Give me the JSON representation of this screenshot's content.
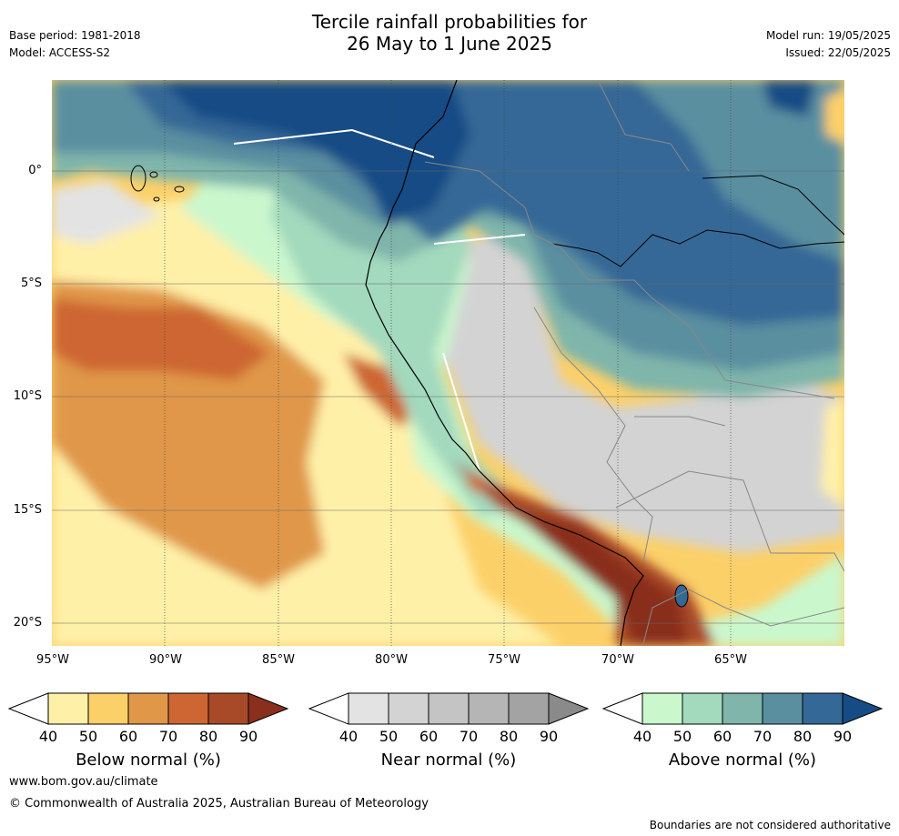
{
  "header": {
    "title_line1": "Tercile rainfall probabilities for",
    "title_line2": "26 May to 1 June 2025",
    "base_period": "Base period: 1981-2018",
    "model": "Model: ACCESS-S2",
    "model_run": "Model run: 19/05/2025",
    "issued": "Issued: 22/05/2025"
  },
  "map": {
    "latitude_labels": [
      "0°",
      "5°S",
      "10°S",
      "15°S",
      "20°S"
    ],
    "longitude_labels": [
      "95°W",
      "90°W",
      "85°W",
      "80°W",
      "75°W",
      "70°W",
      "65°W"
    ],
    "extent": {
      "lon_min": -95,
      "lon_max": -60,
      "lat_min": -21,
      "lat_max": 4
    },
    "category_colors": {
      "below": [
        "#fff0a8",
        "#fcd069",
        "#e09748",
        "#cd6633",
        "#a84927",
        "#8a2f1d"
      ],
      "near": [
        "#e3e3e3",
        "#d3d3d3",
        "#c4c4c4",
        "#b5b5b5",
        "#a3a3a3",
        "#8a8a8a"
      ],
      "above": [
        "#cbf7cd",
        "#a3d9bd",
        "#7fb5ab",
        "#5a8fa0",
        "#346896",
        "#164c85"
      ]
    }
  },
  "colorbars": [
    {
      "title": "Below normal (%)",
      "ticks": [
        "40",
        "50",
        "60",
        "70",
        "80",
        "90"
      ],
      "colors": [
        "#fff0a8",
        "#fcd069",
        "#e09748",
        "#cd6633",
        "#a84927"
      ],
      "extend_color": "#8a2f1d"
    },
    {
      "title": "Near normal (%)",
      "ticks": [
        "40",
        "50",
        "60",
        "70",
        "80",
        "90"
      ],
      "colors": [
        "#e3e3e3",
        "#d3d3d3",
        "#c4c4c4",
        "#b5b5b5",
        "#a3a3a3"
      ],
      "extend_color": "#8a8a8a"
    },
    {
      "title": "Above normal (%)",
      "ticks": [
        "40",
        "50",
        "60",
        "70",
        "80",
        "90"
      ],
      "colors": [
        "#cbf7cd",
        "#a3d9bd",
        "#7fb5ab",
        "#5a8fa0",
        "#346896"
      ],
      "extend_color": "#164c85"
    }
  ],
  "footer": {
    "website": "www.bom.gov.au/climate",
    "copyright": "© Commonwealth of Australia 2025, Australian Bureau of Meteorology",
    "disclaimer": "Boundaries are not considered authoritative"
  }
}
